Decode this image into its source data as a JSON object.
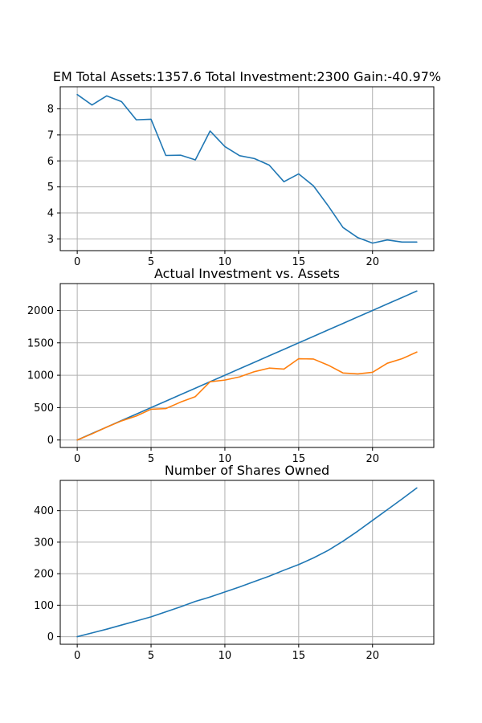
{
  "chart_data": [
    {
      "type": "line",
      "title": "EM Total Assets:1357.6  Total Investment:2300  Gain:-40.97%",
      "xlim": [
        -1.15,
        24.15
      ],
      "ylim": [
        2.55,
        8.85
      ],
      "xticks": [
        0,
        5,
        10,
        15,
        20
      ],
      "yticks": [
        3,
        4,
        5,
        6,
        7,
        8
      ],
      "grid": true,
      "series": [
        {
          "color": "#1f77b4",
          "x": [
            0,
            1,
            2,
            3,
            4,
            5,
            6,
            7,
            8,
            9,
            10,
            11,
            12,
            13,
            14,
            15,
            16,
            17,
            18,
            19,
            20,
            21,
            22,
            23
          ],
          "y": [
            8.55,
            8.15,
            8.5,
            8.28,
            7.58,
            7.6,
            6.21,
            6.22,
            6.04,
            7.15,
            6.55,
            6.2,
            6.09,
            5.84,
            5.2,
            5.5,
            5.04,
            4.27,
            3.44,
            3.05,
            2.84,
            2.96,
            2.88,
            2.88
          ]
        }
      ]
    },
    {
      "type": "line",
      "title": "Actual Investment vs. Assets",
      "xlim": [
        -1.15,
        24.15
      ],
      "ylim": [
        -115,
        2415
      ],
      "xticks": [
        0,
        5,
        10,
        15,
        20
      ],
      "yticks": [
        0,
        500,
        1000,
        1500,
        2000
      ],
      "grid": true,
      "series": [
        {
          "color": "#1f77b4",
          "x": [
            0,
            1,
            2,
            3,
            4,
            5,
            6,
            7,
            8,
            9,
            10,
            11,
            12,
            13,
            14,
            15,
            16,
            17,
            18,
            19,
            20,
            21,
            22,
            23
          ],
          "y": [
            0,
            100,
            200,
            300,
            400,
            500,
            600,
            700,
            800,
            900,
            1000,
            1100,
            1200,
            1300,
            1400,
            1500,
            1600,
            1700,
            1800,
            1900,
            2000,
            2100,
            2200,
            2300
          ]
        },
        {
          "color": "#ff7f0e",
          "x": [
            0,
            1,
            2,
            3,
            4,
            5,
            6,
            7,
            8,
            9,
            10,
            11,
            12,
            13,
            14,
            15,
            16,
            17,
            18,
            19,
            20,
            21,
            22,
            23
          ],
          "y": [
            0,
            95,
            200,
            295,
            370,
            475,
            485,
            585,
            670,
            900,
            925,
            975,
            1055,
            1110,
            1095,
            1255,
            1250,
            1155,
            1035,
            1020,
            1045,
            1185,
            1255,
            1357.6
          ]
        }
      ]
    },
    {
      "type": "line",
      "title": "Number of Shares Owned",
      "xlim": [
        -1.15,
        24.15
      ],
      "ylim": [
        -24,
        496
      ],
      "xticks": [
        0,
        5,
        10,
        15,
        20
      ],
      "yticks": [
        0,
        100,
        200,
        300,
        400
      ],
      "grid": true,
      "series": [
        {
          "color": "#1f77b4",
          "x": [
            0,
            1,
            2,
            3,
            4,
            5,
            6,
            7,
            8,
            9,
            10,
            11,
            12,
            13,
            14,
            15,
            16,
            17,
            18,
            19,
            20,
            21,
            22,
            23
          ],
          "y": [
            0,
            12,
            24,
            37,
            50,
            63,
            79,
            95,
            112,
            126,
            142,
            158,
            175,
            192,
            211,
            229,
            250,
            274,
            303,
            335,
            369,
            403,
            437,
            472
          ]
        }
      ]
    }
  ]
}
